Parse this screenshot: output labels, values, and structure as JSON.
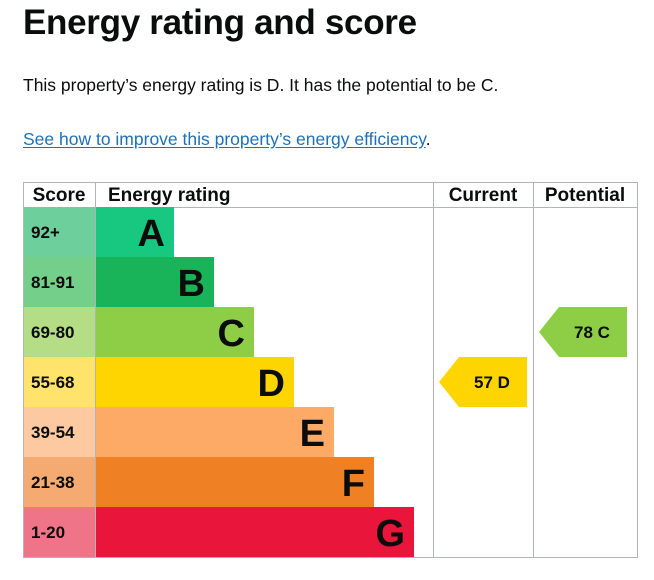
{
  "page": {
    "title": "Energy rating and score",
    "summary": "This property’s energy rating is D. It has the potential to be C.",
    "improve_link": "See how to improve this property’s energy efficiency",
    "improve_suffix": "."
  },
  "chart_data": {
    "type": "table",
    "columns": [
      "Score",
      "Energy rating",
      "Current",
      "Potential"
    ],
    "bands": [
      {
        "score": "92+",
        "letter": "A",
        "color": "#008054",
        "tint": "#6dcf9c",
        "bar": "#19c880"
      },
      {
        "score": "81-91",
        "letter": "B",
        "color": "#19b459",
        "tint": "#74cf8b",
        "bar": "#19b459"
      },
      {
        "score": "69-80",
        "letter": "C",
        "color": "#8dce46",
        "tint": "#b4dd86",
        "bar": "#8dce46"
      },
      {
        "score": "55-68",
        "letter": "D",
        "color": "#ffd500",
        "tint": "#ffe36a",
        "bar": "#ffd500"
      },
      {
        "score": "39-54",
        "letter": "E",
        "color": "#fcaa65",
        "tint": "#fdc9a0",
        "bar": "#fcaa65"
      },
      {
        "score": "21-38",
        "letter": "F",
        "color": "#ef8023",
        "tint": "#f4aa70",
        "bar": "#ef8023"
      },
      {
        "score": "1-20",
        "letter": "G",
        "color": "#e9153b",
        "tint": "#f07488",
        "bar": "#e9153b"
      }
    ],
    "current": {
      "value": 57,
      "band": "D",
      "label": "57 D",
      "color": "#ffd500"
    },
    "potential": {
      "value": 78,
      "band": "C",
      "label": "78 C",
      "color": "#8dce46"
    }
  }
}
